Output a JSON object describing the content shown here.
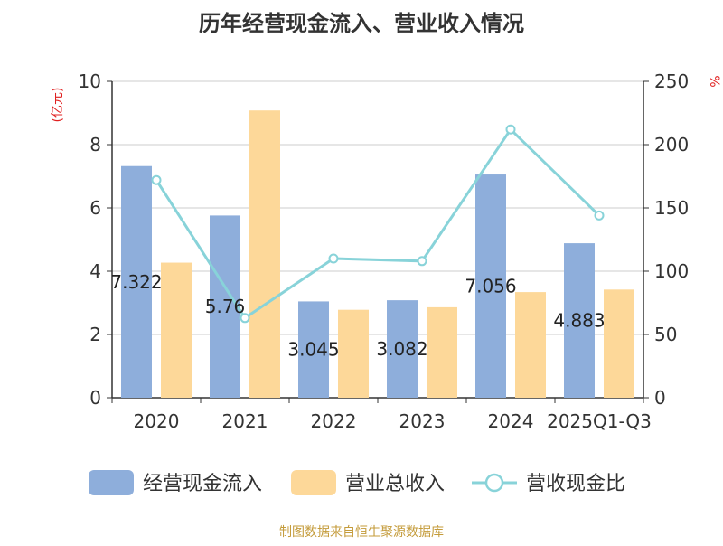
{
  "chart_data": {
    "type": "bar",
    "title": "历年经营现金流入、营业收入情况",
    "left_unit": "(亿元)",
    "right_unit": "%",
    "categories": [
      "2020",
      "2021",
      "2022",
      "2023",
      "2024",
      "2025Q1-Q3"
    ],
    "series": [
      {
        "name": "经营现金流入",
        "kind": "bar",
        "axis": "left",
        "color": "#8eaedb",
        "values": [
          7.322,
          5.76,
          3.045,
          3.082,
          7.056,
          4.883
        ],
        "labels": [
          "7.322",
          "5.76",
          "3.045",
          "3.082",
          "7.056",
          "4.883"
        ]
      },
      {
        "name": "营业总收入",
        "kind": "bar",
        "axis": "left",
        "color": "#fdd899",
        "values": [
          4.27,
          9.08,
          2.78,
          2.86,
          3.34,
          3.42
        ]
      },
      {
        "name": "营收现金比",
        "kind": "line",
        "axis": "right",
        "color": "#88d3d9",
        "values": [
          172,
          63,
          110,
          108,
          212,
          144
        ]
      }
    ],
    "left_axis": {
      "min": 0,
      "max": 10,
      "ticks": [
        "0",
        "2",
        "4",
        "6",
        "8",
        "10"
      ]
    },
    "right_axis": {
      "min": 0,
      "max": 250,
      "ticks": [
        "0",
        "50",
        "100",
        "150",
        "200",
        "250"
      ]
    },
    "grid": true,
    "legend_position": "bottom"
  },
  "source": "制图数据来自恒生聚源数据库"
}
